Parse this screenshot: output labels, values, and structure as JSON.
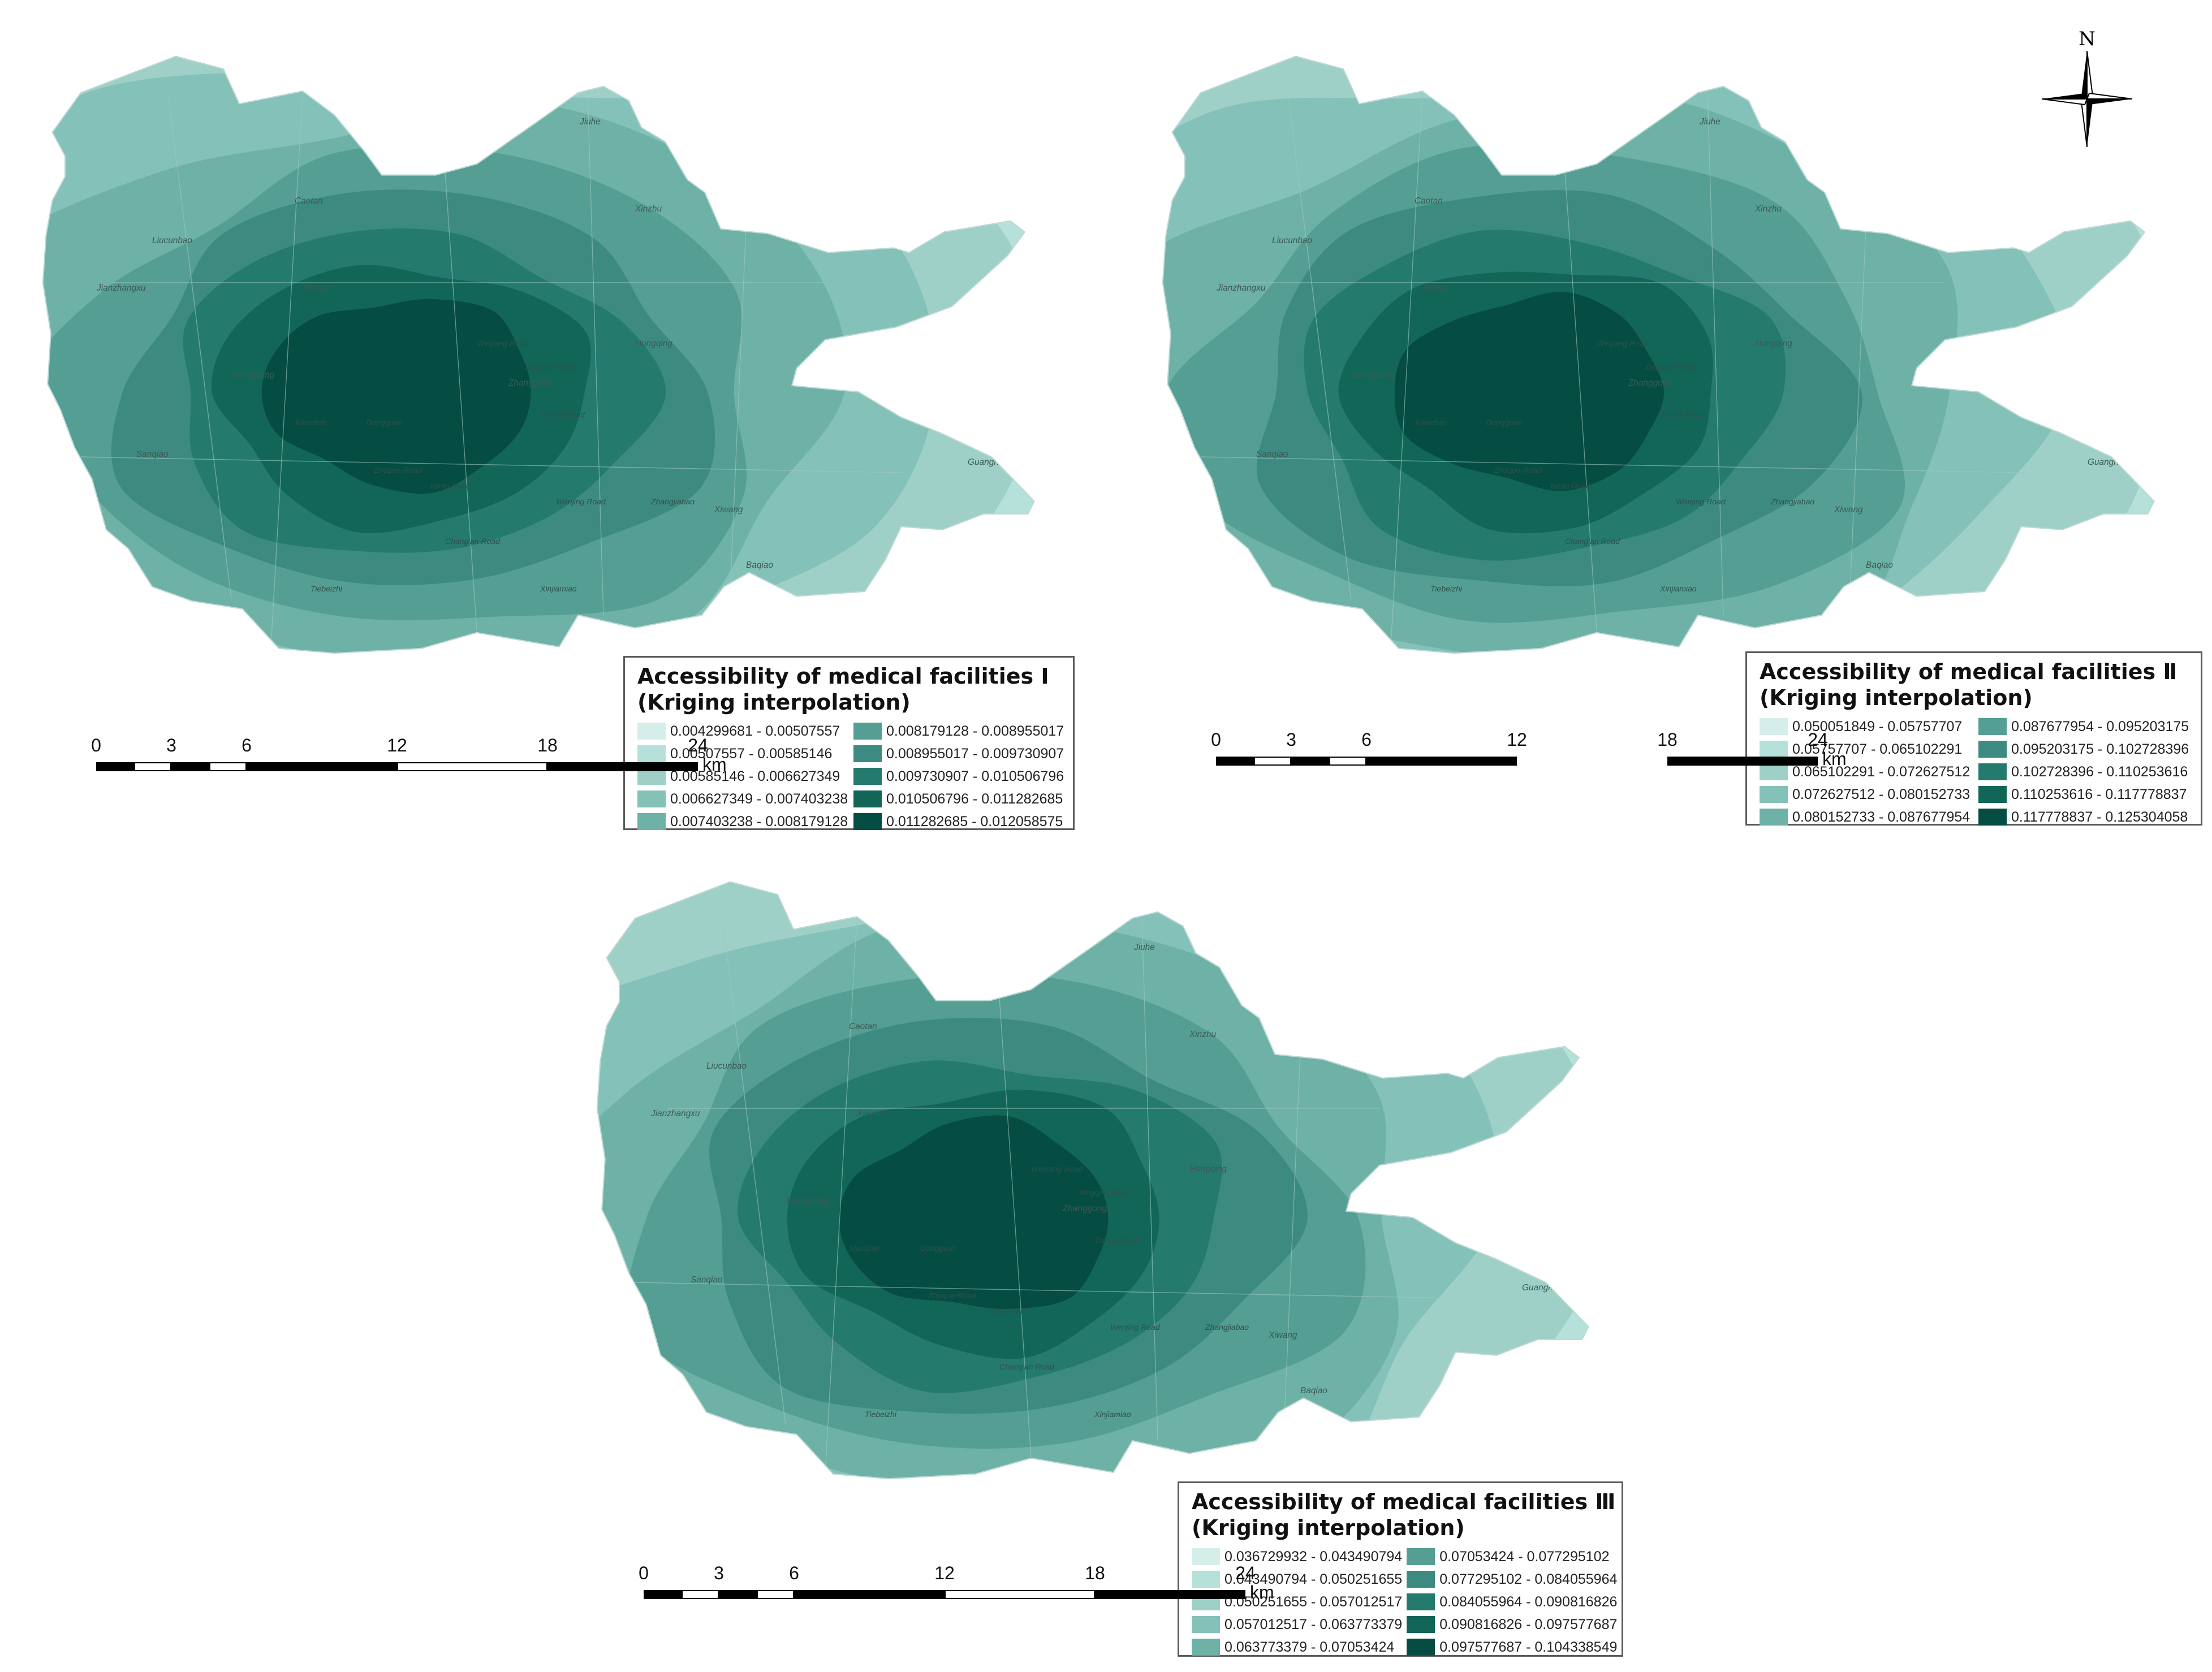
{
  "colors": [
    "#d5eeea",
    "#b6e0da",
    "#9ed0c8",
    "#84c1b8",
    "#6eb1a6",
    "#559e93",
    "#3d8b80",
    "#257a6e",
    "#126658",
    "#054c42"
  ],
  "north": {
    "label": "N"
  },
  "scale": {
    "ticks": [
      "0",
      "3",
      "6",
      "12",
      "18",
      "24"
    ],
    "unit": "km"
  },
  "place_names": [
    "Jiuhe",
    "Weiyang Lake",
    "Caotan",
    "Xinzhu",
    "Liucunbao",
    "Jianzhangxu",
    "Sanqiao",
    "Xieyan",
    "Hongqing",
    "Xiwang",
    "Baqiao",
    "Guanghuamen",
    "Xiangwang",
    "Zhanggong",
    "Weiyang Road",
    "Taihua Road",
    "Xingqing Road",
    "Zhuque Road",
    "Yanta Road",
    "Chang'an Road",
    "Dongguan",
    "Xiaozhai",
    "Wenjing Road",
    "Zhangjiabao",
    "Xinjiamiao",
    "Tiebeizhi"
  ],
  "maps": [
    {
      "legend_title_1": "Accessibility of medical facilities Ⅰ",
      "legend_title_2": "(Kriging interpolation)",
      "classes": [
        "0.004299681 - 0.00507557",
        "0.00507557 - 0.00585146",
        "0.00585146 - 0.006627349",
        "0.006627349 - 0.007403238",
        "0.007403238 - 0.008179128",
        "0.008179128 - 0.008955017",
        "0.008955017 - 0.009730907",
        "0.009730907 - 0.010506796",
        "0.010506796 - 0.011282685",
        "0.011282685 - 0.012058575"
      ]
    },
    {
      "legend_title_1": "Accessibility of medical facilities Ⅱ",
      "legend_title_2": "(Kriging interpolation)",
      "classes": [
        "0.050051849 - 0.05757707",
        "0.05757707 - 0.065102291",
        "0.065102291 - 0.072627512",
        "0.072627512 - 0.080152733",
        "0.080152733 - 0.087677954",
        "0.087677954 - 0.095203175",
        "0.095203175 - 0.102728396",
        "0.102728396 - 0.110253616",
        "0.110253616 - 0.117778837",
        "0.117778837 - 0.125304058"
      ]
    },
    {
      "legend_title_1": "Accessibility of medical facilities Ⅲ",
      "legend_title_2": "(Kriging interpolation)",
      "classes": [
        "0.036729932 - 0.043490794",
        "0.043490794 - 0.050251655",
        "0.050251655 - 0.057012517",
        "0.057012517 - 0.063773379",
        "0.063773379 - 0.07053424",
        "0.07053424 - 0.077295102",
        "0.077295102 - 0.084055964",
        "0.084055964 - 0.090816826",
        "0.090816826 - 0.097577687",
        "0.097577687 - 0.104338549"
      ]
    }
  ]
}
